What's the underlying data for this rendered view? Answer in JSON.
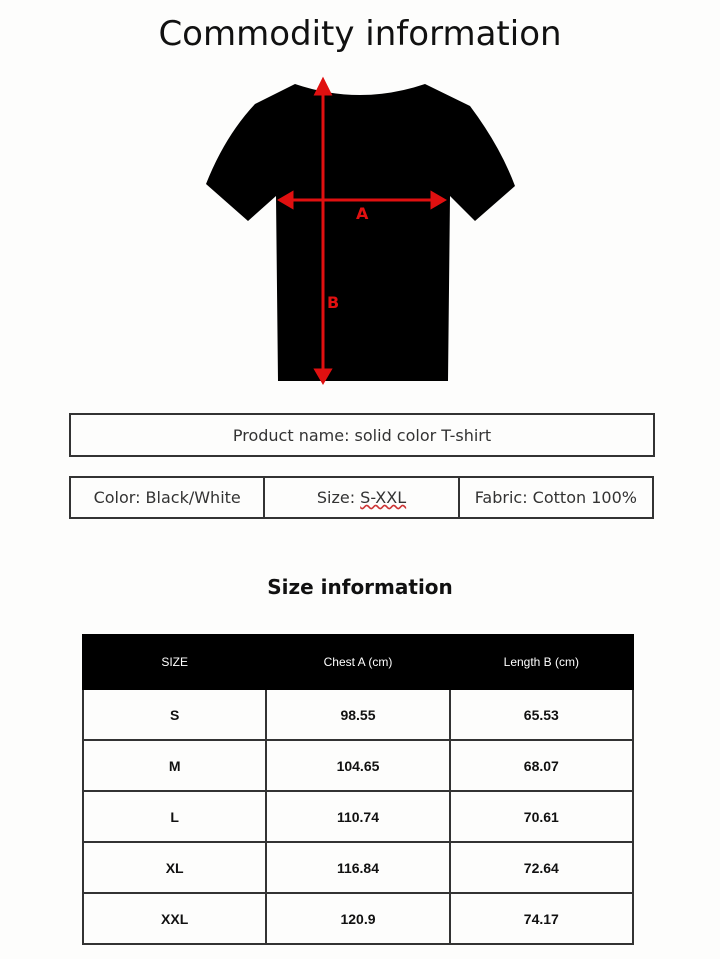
{
  "title": "Commodity information",
  "diagram": {
    "label_a": "A",
    "label_b": "B",
    "arrow_color": "#e01010",
    "shirt_color": "#000000"
  },
  "product_name": "Product name: solid color T-shirt",
  "specs": {
    "color": "Color: Black/White",
    "size_prefix": "Size: ",
    "size_value": "S-XXL",
    "fabric": "Fabric: Cotton 100%"
  },
  "size_title": "Size information",
  "table": {
    "headers": [
      "SIZE",
      "Chest A (cm)",
      "Length B (cm)"
    ],
    "rows": [
      [
        "S",
        "98.55",
        "65.53"
      ],
      [
        "M",
        "104.65",
        "68.07"
      ],
      [
        "L",
        "110.74",
        "70.61"
      ],
      [
        "XL",
        "116.84",
        "72.64"
      ],
      [
        "XXL",
        "120.9",
        "74.17"
      ]
    ]
  }
}
